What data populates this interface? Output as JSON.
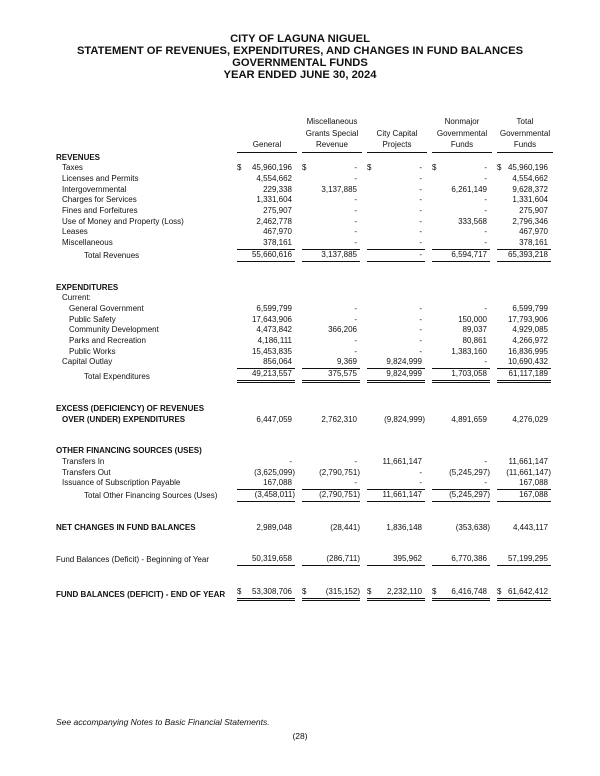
{
  "title_lines": [
    "CITY OF LAGUNA NIGUEL",
    "STATEMENT OF REVENUES, EXPENDITURES, AND CHANGES IN FUND BALANCES",
    "GOVERNMENTAL FUNDS",
    "YEAR ENDED JUNE 30, 2024"
  ],
  "columns": [
    [
      "",
      "",
      "General"
    ],
    [
      "Miscellaneous",
      "Grants Special",
      "Revenue"
    ],
    [
      "",
      "City Capital",
      "Projects"
    ],
    [
      "Nonmajor",
      "Governmental",
      "Funds"
    ],
    [
      "Total",
      "Governmental",
      "Funds"
    ]
  ],
  "rows": [
    {
      "label": "REVENUES",
      "bold": true,
      "indent": 0
    },
    {
      "label": "Taxes",
      "indent": 1,
      "dollar": true,
      "values": [
        "45,960,196",
        "-",
        "-",
        "-",
        "45,960,196"
      ]
    },
    {
      "label": "Licenses and Permits",
      "indent": 1,
      "values": [
        "4,554,662",
        "-",
        "-",
        "-",
        "4,554,662"
      ]
    },
    {
      "label": "Intergovernmental",
      "indent": 1,
      "values": [
        "229,338",
        "3,137,885",
        "-",
        "6,261,149",
        "9,628,372"
      ]
    },
    {
      "label": "Charges for Services",
      "indent": 1,
      "values": [
        "1,331,604",
        "-",
        "-",
        "-",
        "1,331,604"
      ]
    },
    {
      "label": "Fines and Forfeitures",
      "indent": 1,
      "values": [
        "275,907",
        "-",
        "-",
        "-",
        "275,907"
      ]
    },
    {
      "label": "Use of Money and Property (Loss)",
      "indent": 1,
      "values": [
        "2,462,778",
        "-",
        "-",
        "333,568",
        "2,796,346"
      ]
    },
    {
      "label": "Leases",
      "indent": 1,
      "values": [
        "467,970",
        "-",
        "-",
        "-",
        "467,970"
      ]
    },
    {
      "label": "Miscellaneous",
      "indent": 1,
      "values": [
        "378,161",
        "-",
        "-",
        "-",
        "378,161"
      ]
    },
    {
      "label": "Total Revenues",
      "indent": 3,
      "rule": "single",
      "values": [
        "55,660,616",
        "3,137,885",
        "-",
        "6,594,717",
        "65,393,218"
      ]
    },
    {
      "label": "EXPENDITURES",
      "bold": true,
      "indent": 0,
      "gap": true
    },
    {
      "label": "Current:",
      "indent": 1
    },
    {
      "label": "General Government",
      "indent": 2,
      "values": [
        "6,599,799",
        "-",
        "-",
        "-",
        "6,599,799"
      ]
    },
    {
      "label": "Public Safety",
      "indent": 2,
      "values": [
        "17,643,906",
        "-",
        "-",
        "150,000",
        "17,793,906"
      ]
    },
    {
      "label": "Community Development",
      "indent": 2,
      "values": [
        "4,473,842",
        "366,206",
        "-",
        "89,037",
        "4,929,085"
      ]
    },
    {
      "label": "Parks and Recreation",
      "indent": 2,
      "values": [
        "4,186,111",
        "-",
        "-",
        "80,861",
        "4,266,972"
      ]
    },
    {
      "label": "Public Works",
      "indent": 2,
      "values": [
        "15,453,835",
        "-",
        "-",
        "1,383,160",
        "16,836,995"
      ]
    },
    {
      "label": "Capital Outlay",
      "indent": 1,
      "values": [
        "856,064",
        "9,369",
        "9,824,999",
        "-",
        "10,690,432"
      ]
    },
    {
      "label": "Total Expenditures",
      "indent": 3,
      "rule": "double",
      "values": [
        "49,213,557",
        "375,575",
        "9,824,999",
        "1,703,058",
        "61,117,189"
      ]
    },
    {
      "label": "EXCESS (DEFICIENCY) OF REVENUES",
      "bold": true,
      "indent": 0,
      "gap": true
    },
    {
      "label": "OVER (UNDER) EXPENDITURES",
      "bold": true,
      "indent": 1,
      "values": [
        "6,447,059",
        "2,762,310",
        "(9,824,999)",
        "4,891,659",
        "4,276,029"
      ]
    },
    {
      "label": "OTHER FINANCING SOURCES (USES)",
      "bold": true,
      "indent": 0,
      "gap": true
    },
    {
      "label": "Transfers In",
      "indent": 1,
      "values": [
        "-",
        "-",
        "11,661,147",
        "-",
        "11,661,147"
      ]
    },
    {
      "label": "Transfers Out",
      "indent": 1,
      "values": [
        "(3,625,099)",
        "(2,790,751)",
        "-",
        "(5,245,297)",
        "(11,661,147)"
      ]
    },
    {
      "label": "Issuance of Subscription Payable",
      "indent": 1,
      "values": [
        "167,088",
        "-",
        "-",
        "-",
        "167,088"
      ]
    },
    {
      "label": "Total Other Financing Sources (Uses)",
      "indent": 3,
      "rule": "single",
      "values": [
        "(3,458,011)",
        "(2,790,751)",
        "11,661,147",
        "(5,245,297)",
        "167,088"
      ]
    },
    {
      "label": "NET CHANGES IN FUND BALANCES",
      "bold": true,
      "indent": 0,
      "gap": true,
      "values": [
        "2,989,048",
        "(28,441)",
        "1,836,148",
        "(353,638)",
        "4,443,117"
      ]
    },
    {
      "label": "Fund Balances (Deficit) - Beginning of Year",
      "indent": 0,
      "gap": true,
      "rule": "below",
      "values": [
        "50,319,658",
        "(286,711)",
        "395,962",
        "6,770,386",
        "57,199,295"
      ]
    },
    {
      "label": "FUND BALANCES (DEFICIT) - END OF YEAR",
      "bold": true,
      "indent": 0,
      "gap": true,
      "dollar": true,
      "rule": "dblonly",
      "values": [
        "53,308,706",
        "(315,152)",
        "2,232,110",
        "6,416,748",
        "61,642,412"
      ]
    }
  ],
  "dollar_sign": "$",
  "footnote": "See accompanying Notes to Basic Financial Statements.",
  "page_number": "(28)"
}
